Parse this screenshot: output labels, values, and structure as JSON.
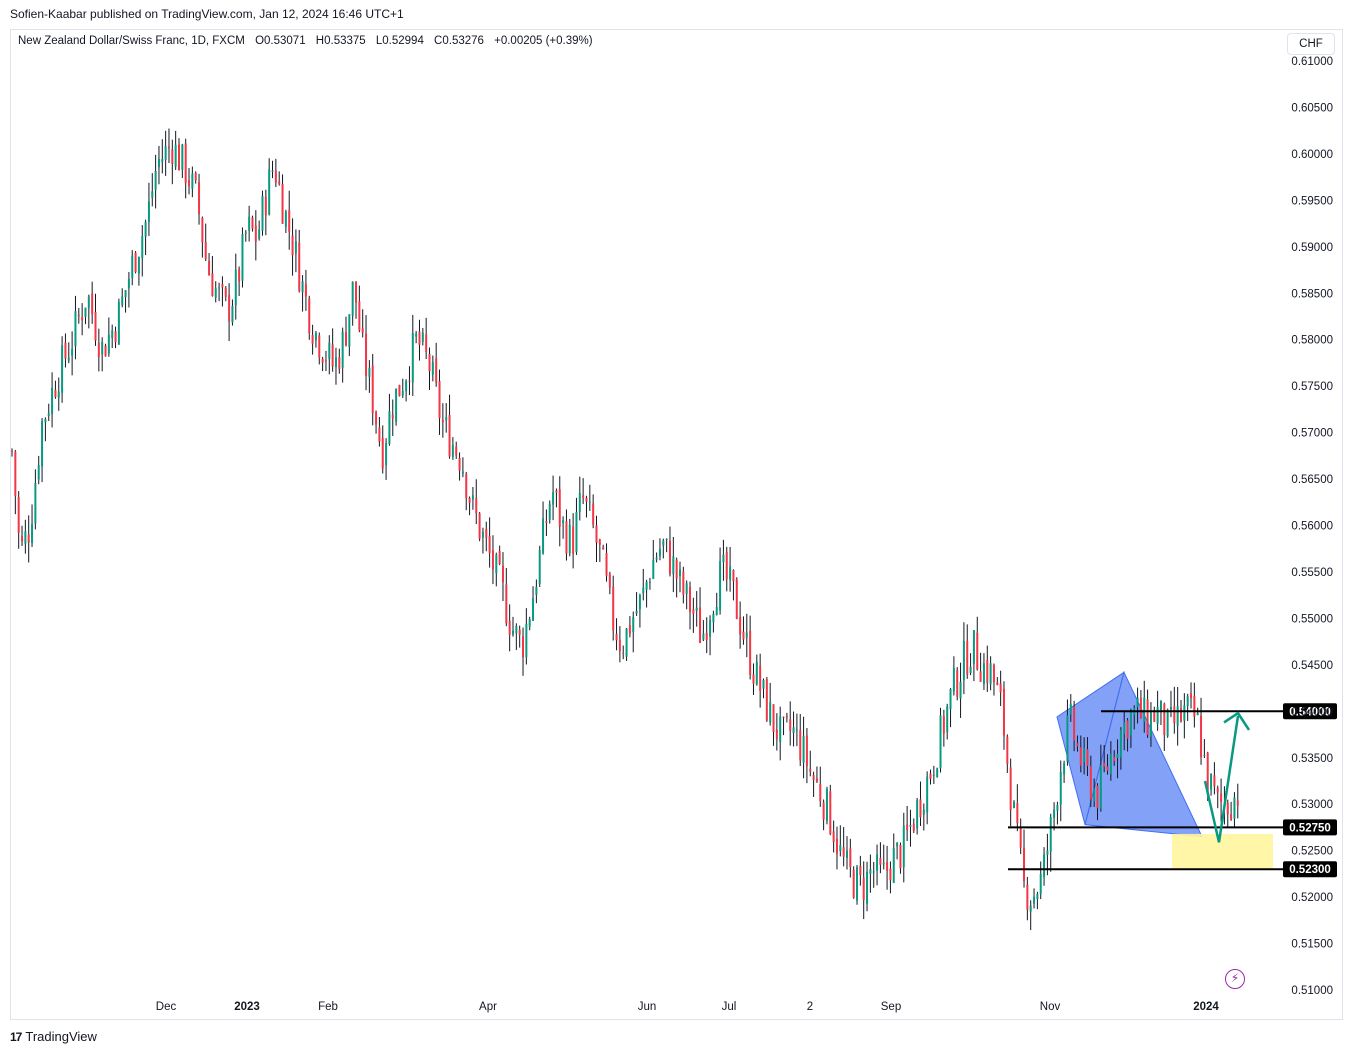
{
  "header": {
    "publish_line": "Sofien-Kaabar published on TradingView.com, Jan 12, 2024 16:46 UTC+1"
  },
  "legend": {
    "symbol": "New Zealand Dollar/Swiss Franc, 1D, FXCM",
    "open": "O0.53071",
    "high": "H0.53375",
    "low": "L0.52994",
    "close": "C0.53276",
    "change": "+0.00205 (+0.39%)"
  },
  "currency_button": "CHF",
  "footer": {
    "brand": "TradingView",
    "logo": "17"
  },
  "colors": {
    "up": "#089981",
    "down": "#f23645",
    "wick": "#131722",
    "pattern_fill": "#3f6ff2",
    "zone_fill": "#fff59d",
    "arrow": "#089981",
    "level_line": "#000000",
    "bolt": "#9c27b0"
  },
  "icons": {
    "bolt": "lightning-bolt-icon",
    "logo": "tradingview-logo-icon"
  },
  "chart_data": {
    "type": "candlestick",
    "title": "New Zealand Dollar/Swiss Franc, 1D, FXCM",
    "ylim": [
      0.51,
      0.61
    ],
    "y_ticks": [
      "0.61000",
      "0.60500",
      "0.60000",
      "0.59500",
      "0.59000",
      "0.58500",
      "0.58000",
      "0.57500",
      "0.57000",
      "0.56500",
      "0.56000",
      "0.55500",
      "0.55000",
      "0.54500",
      "0.54000",
      "0.53500",
      "0.53000",
      "0.52500",
      "0.52000",
      "0.51500",
      "0.51000"
    ],
    "x_ticks": [
      "Dec",
      "2023",
      "Feb",
      "Apr",
      "Jun",
      "Jul",
      "2",
      "Sep",
      "Nov",
      "2024"
    ],
    "x_tick_bold": [
      false,
      true,
      false,
      false,
      false,
      false,
      false,
      false,
      false,
      true
    ],
    "price_path": [
      [
        0,
        0.568
      ],
      [
        8,
        0.557
      ],
      [
        18,
        0.56
      ],
      [
        30,
        0.571
      ],
      [
        45,
        0.576
      ],
      [
        60,
        0.58
      ],
      [
        75,
        0.585
      ],
      [
        90,
        0.579
      ],
      [
        105,
        0.582
      ],
      [
        120,
        0.588
      ],
      [
        135,
        0.593
      ],
      [
        145,
        0.599
      ],
      [
        160,
        0.601
      ],
      [
        175,
        0.598
      ],
      [
        185,
        0.595
      ],
      [
        195,
        0.588
      ],
      [
        205,
        0.585
      ],
      [
        215,
        0.583
      ],
      [
        225,
        0.586
      ],
      [
        235,
        0.592
      ],
      [
        245,
        0.591
      ],
      [
        255,
        0.596
      ],
      [
        262,
        0.599
      ],
      [
        272,
        0.594
      ],
      [
        282,
        0.59
      ],
      [
        292,
        0.585
      ],
      [
        302,
        0.581
      ],
      [
        312,
        0.579
      ],
      [
        322,
        0.577
      ],
      [
        332,
        0.58
      ],
      [
        342,
        0.586
      ],
      [
        350,
        0.579
      ],
      [
        360,
        0.574
      ],
      [
        370,
        0.568
      ],
      [
        380,
        0.573
      ],
      [
        392,
        0.576
      ],
      [
        405,
        0.58
      ],
      [
        418,
        0.577
      ],
      [
        430,
        0.571
      ],
      [
        440,
        0.569
      ],
      [
        450,
        0.567
      ],
      [
        460,
        0.562
      ],
      [
        470,
        0.559
      ],
      [
        480,
        0.556
      ],
      [
        490,
        0.553
      ],
      [
        500,
        0.549
      ],
      [
        510,
        0.547
      ],
      [
        520,
        0.552
      ],
      [
        530,
        0.558
      ],
      [
        540,
        0.564
      ],
      [
        550,
        0.56
      ],
      [
        560,
        0.558
      ],
      [
        570,
        0.563
      ],
      [
        580,
        0.56
      ],
      [
        590,
        0.556
      ],
      [
        600,
        0.55
      ],
      [
        610,
        0.547
      ],
      [
        620,
        0.55
      ],
      [
        630,
        0.552
      ],
      [
        640,
        0.556
      ],
      [
        650,
        0.558
      ],
      [
        660,
        0.556
      ],
      [
        670,
        0.553
      ],
      [
        680,
        0.551
      ],
      [
        690,
        0.548
      ],
      [
        700,
        0.552
      ],
      [
        710,
        0.555
      ],
      [
        720,
        0.553
      ],
      [
        730,
        0.549
      ],
      [
        740,
        0.545
      ],
      [
        750,
        0.542
      ],
      [
        760,
        0.539
      ],
      [
        770,
        0.537
      ],
      [
        780,
        0.538
      ],
      [
        790,
        0.536
      ],
      [
        800,
        0.533
      ],
      [
        810,
        0.531
      ],
      [
        820,
        0.528
      ],
      [
        830,
        0.524
      ],
      [
        840,
        0.522
      ],
      [
        850,
        0.521
      ],
      [
        860,
        0.523
      ],
      [
        870,
        0.522
      ],
      [
        880,
        0.524
      ],
      [
        890,
        0.525
      ],
      [
        900,
        0.528
      ],
      [
        910,
        0.531
      ],
      [
        920,
        0.534
      ],
      [
        930,
        0.538
      ],
      [
        940,
        0.542
      ],
      [
        950,
        0.545
      ],
      [
        960,
        0.547
      ],
      [
        970,
        0.545
      ],
      [
        980,
        0.544
      ],
      [
        990,
        0.54
      ],
      [
        997,
        0.533
      ],
      [
        1005,
        0.526
      ],
      [
        1012,
        0.521
      ],
      [
        1020,
        0.52
      ],
      [
        1030,
        0.522
      ],
      [
        1040,
        0.528
      ],
      [
        1050,
        0.535
      ],
      [
        1058,
        0.539
      ],
      [
        1065,
        0.536
      ],
      [
        1075,
        0.533
      ],
      [
        1085,
        0.531
      ],
      [
        1095,
        0.534
      ],
      [
        1105,
        0.537
      ],
      [
        1115,
        0.539
      ],
      [
        1125,
        0.54
      ],
      [
        1135,
        0.539
      ],
      [
        1145,
        0.54
      ],
      [
        1155,
        0.538
      ],
      [
        1165,
        0.539
      ],
      [
        1175,
        0.54
      ],
      [
        1185,
        0.539
      ],
      [
        1195,
        0.533
      ],
      [
        1205,
        0.53
      ],
      [
        1215,
        0.53
      ],
      [
        1225,
        0.531
      ],
      [
        1233,
        0.5328
      ]
    ],
    "levels": [
      {
        "label": "0.54000",
        "value": 0.54
      },
      {
        "label": "0.52750",
        "value": 0.5275
      },
      {
        "label": "0.52300",
        "value": 0.523
      }
    ],
    "grid": false,
    "legend_placement": "top-left"
  }
}
